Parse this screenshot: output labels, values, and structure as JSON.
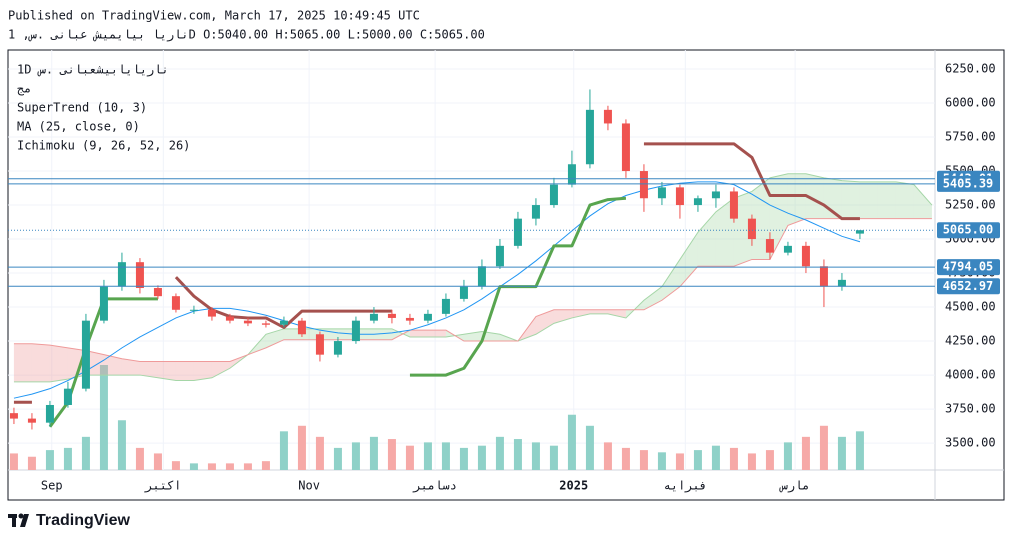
{
  "header": {
    "published": "Published on TradingView.com, March 17, 2025 10:49:45 UTC",
    "symbol_line": "ناريا بيايميش عبانى .س, 1D O:5040.00 H:5065.00 L:5000.00 C:5065.00"
  },
  "footer": {
    "brand": "TradingView"
  },
  "chart_data": {
    "type": "candlestick",
    "legend": [
      "1D ناريايابيشعبانى .س",
      "مج",
      "SuperTrend (10, 3)",
      "MA (25, close, 0)",
      "Ichimoku (9, 26, 52, 26)"
    ],
    "up_color": "#26a69a",
    "down_color": "#ef5350",
    "volume_up_color": "#8fd1c8",
    "volume_down_color": "#f6a9a7",
    "open": [
      3720,
      3680,
      3650,
      3780,
      3900,
      4400,
      4650,
      4830,
      4640,
      4580,
      4480,
      4480,
      4430,
      4400,
      4380,
      4370,
      4400,
      4300,
      4150,
      4250,
      4400,
      4450,
      4420,
      4400,
      4450,
      4560,
      4650,
      4800,
      4950,
      5150,
      5250,
      5400,
      5550,
      5950,
      5850,
      5500,
      5300,
      5380,
      5250,
      5300,
      5350,
      5150,
      5000,
      4900,
      4950,
      4800,
      4650,
      5040
    ],
    "high": [
      3760,
      3720,
      3810,
      3950,
      4450,
      4700,
      4900,
      4860,
      4660,
      4600,
      4510,
      4500,
      4450,
      4420,
      4400,
      4430,
      4420,
      4320,
      4280,
      4430,
      4500,
      4480,
      4450,
      4480,
      4600,
      4700,
      4850,
      5000,
      5200,
      5300,
      5450,
      5650,
      6100,
      5980,
      5880,
      5550,
      5420,
      5400,
      5320,
      5400,
      5380,
      5180,
      5050,
      4980,
      4980,
      4850,
      4750,
      5065
    ],
    "low": [
      3640,
      3600,
      3620,
      3760,
      3880,
      4380,
      4620,
      4600,
      4560,
      4460,
      4450,
      4400,
      4380,
      4360,
      4350,
      4350,
      4280,
      4100,
      4130,
      4230,
      4380,
      4380,
      4370,
      4380,
      4430,
      4540,
      4630,
      4780,
      4930,
      5100,
      5230,
      5380,
      5520,
      5800,
      5450,
      5200,
      5250,
      5150,
      5200,
      5230,
      5120,
      4950,
      4850,
      4880,
      4750,
      4500,
      4620,
      5000
    ],
    "close": [
      3680,
      3650,
      3780,
      3900,
      4400,
      4650,
      4830,
      4640,
      4580,
      4480,
      4480,
      4430,
      4400,
      4380,
      4370,
      4400,
      4300,
      4150,
      4250,
      4400,
      4450,
      4420,
      4400,
      4450,
      4560,
      4650,
      4800,
      4950,
      5150,
      5250,
      5400,
      5550,
      5950,
      5850,
      5500,
      5300,
      5380,
      5250,
      5300,
      5350,
      5150,
      5000,
      4900,
      4950,
      4800,
      4650,
      4700,
      5065
    ],
    "volume": [
      15,
      12,
      18,
      20,
      30,
      95,
      45,
      20,
      15,
      8,
      6,
      6,
      6,
      6,
      8,
      35,
      40,
      30,
      20,
      25,
      30,
      28,
      22,
      25,
      25,
      20,
      22,
      30,
      28,
      25,
      22,
      50,
      40,
      25,
      20,
      18,
      16,
      15,
      18,
      22,
      20,
      15,
      18,
      25,
      30,
      40,
      30,
      35
    ],
    "ma": {
      "color": "#2196f3",
      "values": [
        3830,
        3860,
        3900,
        3960,
        4030,
        4110,
        4200,
        4280,
        4350,
        4420,
        4470,
        4490,
        4490,
        4470,
        4440,
        4400,
        4360,
        4330,
        4310,
        4300,
        4300,
        4310,
        4330,
        4370,
        4420,
        4480,
        4560,
        4650,
        4740,
        4840,
        4950,
        5060,
        5170,
        5260,
        5320,
        5360,
        5390,
        5410,
        5420,
        5420,
        5400,
        5330,
        5250,
        5190,
        5140,
        5080,
        5020,
        4980
      ]
    },
    "supertrend": {
      "values": [
        3800,
        3800,
        3620,
        3800,
        4200,
        4560,
        4560,
        4560,
        4560,
        4720,
        4580,
        4480,
        4430,
        4420,
        4420,
        4350,
        4470,
        4470,
        4470,
        4470,
        4470,
        4470,
        4000,
        4000,
        4000,
        4050,
        4250,
        4650,
        4650,
        4650,
        4950,
        4950,
        5250,
        5290,
        5300,
        5700,
        5700,
        5700,
        5700,
        5700,
        5700,
        5600,
        5320,
        5320,
        5320,
        5250,
        5150,
        5150
      ],
      "colors": [
        "#a5514e",
        "#a5514e",
        "#58a54f",
        "#58a54f",
        "#58a54f",
        "#58a54f",
        "#58a54f",
        "#58a54f",
        "#58a54f",
        "#a5514e",
        "#a5514e",
        "#a5514e",
        "#a5514e",
        "#a5514e",
        "#a5514e",
        "#a5514e",
        "#a5514e",
        "#a5514e",
        "#a5514e",
        "#a5514e",
        "#a5514e",
        "#a5514e",
        "#58a54f",
        "#58a54f",
        "#58a54f",
        "#58a54f",
        "#58a54f",
        "#58a54f",
        "#58a54f",
        "#58a54f",
        "#58a54f",
        "#58a54f",
        "#58a54f",
        "#58a54f",
        "#58a54f",
        "#a5514e",
        "#a5514e",
        "#a5514e",
        "#a5514e",
        "#a5514e",
        "#a5514e",
        "#a5514e",
        "#a5514e",
        "#a5514e",
        "#a5514e",
        "#a5514e",
        "#a5514e",
        "#a5514e"
      ]
    },
    "ichimoku": {
      "bull_color": "#a5d6a7",
      "bear_color": "#ef9a9a",
      "span_a": [
        3950,
        3950,
        3950,
        3970,
        4000,
        4000,
        4000,
        4000,
        3980,
        3960,
        3960,
        3980,
        4050,
        4150,
        4300,
        4340,
        4340,
        4340,
        4340,
        4340,
        4340,
        4340,
        4280,
        4280,
        4280,
        4300,
        4320,
        4300,
        4250,
        4300,
        4380,
        4420,
        4450,
        4450,
        4420,
        4550,
        4650,
        4850,
        5050,
        5200,
        5300,
        5350,
        5450,
        5480,
        5480,
        5450,
        5430,
        5420,
        5420,
        5420,
        5400,
        5250
      ],
      "span_b": [
        4230,
        4230,
        4220,
        4200,
        4180,
        4150,
        4120,
        4100,
        4100,
        4100,
        4100,
        4100,
        4100,
        4150,
        4200,
        4260,
        4260,
        4260,
        4260,
        4260,
        4260,
        4260,
        4330,
        4330,
        4330,
        4250,
        4250,
        4250,
        4250,
        4430,
        4480,
        4480,
        4480,
        4480,
        4480,
        4480,
        4550,
        4650,
        4800,
        4800,
        4800,
        4850,
        4850,
        5100,
        5150,
        5150,
        5150,
        5150,
        5150,
        5150,
        5150,
        5150
      ]
    },
    "level_color": "#3a86c0",
    "levels": [
      5443.01,
      5405.39,
      4794.05,
      4652.97
    ],
    "last_price": {
      "value": 5065,
      "label": "5065.00"
    },
    "xlim": [
      -0.33,
      51.17
    ],
    "xticks": [
      {
        "value": 2.1,
        "label": "Sep"
      },
      {
        "value": 8.3,
        "label": "اكتبر"
      },
      {
        "value": 16.4,
        "label": "Nov"
      },
      {
        "value": 23.4,
        "label": "دسامبر"
      },
      {
        "value": 31.1,
        "label": "2025"
      },
      {
        "value": 37.3,
        "label": "فبرايه"
      },
      {
        "value": 43.4,
        "label": "مارس"
      }
    ],
    "ylim": [
      3302,
      6390
    ],
    "yticks": [
      {
        "value": 3500,
        "label": "3500.00"
      },
      {
        "value": 3750,
        "label": "3750.00"
      },
      {
        "value": 4000,
        "label": "4000.00"
      },
      {
        "value": 4250,
        "label": "4250.00"
      },
      {
        "value": 4500,
        "label": "4500.00"
      },
      {
        "value": 4750,
        "label": "4750.00"
      },
      {
        "value": 5000,
        "label": "5000.00"
      },
      {
        "value": 5250,
        "label": "5250.00"
      },
      {
        "value": 5500,
        "label": "5500.00"
      },
      {
        "value": 5750,
        "label": "5750.00"
      },
      {
        "value": 6000,
        "label": "6000.00"
      },
      {
        "value": 6250,
        "label": "6250.00"
      }
    ],
    "grid": true
  }
}
